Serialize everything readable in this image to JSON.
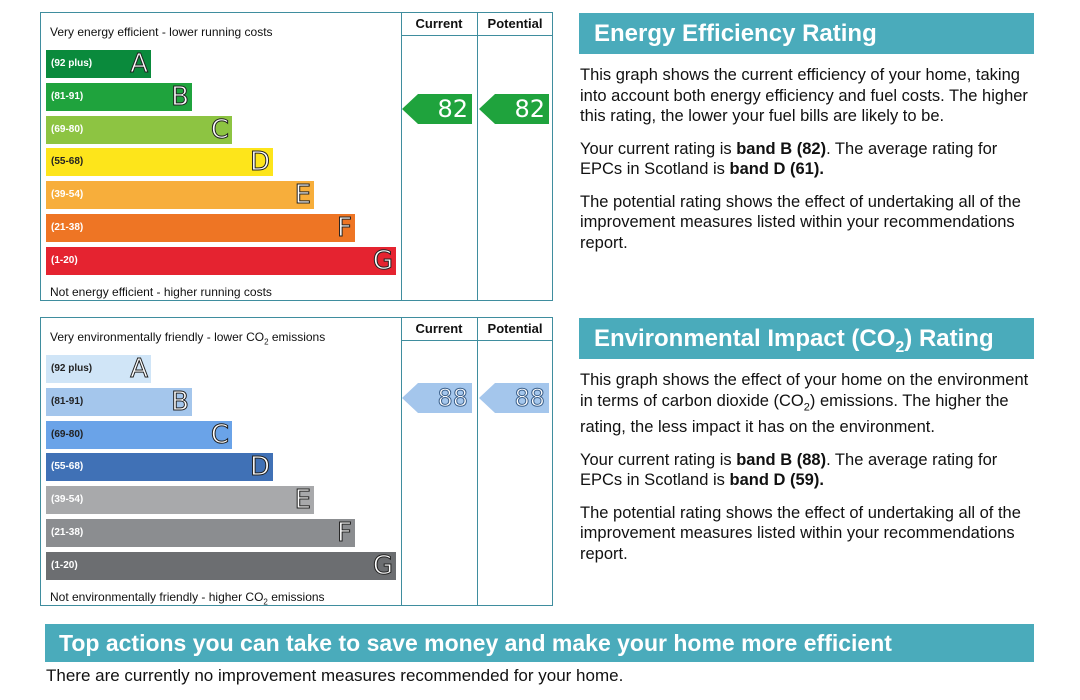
{
  "charts": {
    "energy": {
      "col_current": "Current",
      "col_potential": "Potential",
      "top_caption": "Very energy efficient - lower running costs",
      "bottom_caption": "Not energy efficient - higher running costs",
      "bands": [
        {
          "range": "(92 plus)",
          "letter": "A",
          "color": "#0a8a3c"
        },
        {
          "range": "(81-91)",
          "letter": "B",
          "color": "#1fa33d"
        },
        {
          "range": "(69-80)",
          "letter": "C",
          "color": "#8dc442"
        },
        {
          "range": "(55-68)",
          "letter": "D",
          "color": "#fde51b"
        },
        {
          "range": "(39-54)",
          "letter": "E",
          "color": "#f7ae3b"
        },
        {
          "range": "(21-38)",
          "letter": "F",
          "color": "#ee7524"
        },
        {
          "range": "(1-20)",
          "letter": "G",
          "color": "#e52330"
        }
      ],
      "current": "82",
      "potential": "82"
    },
    "environmental": {
      "col_current": "Current",
      "col_potential": "Potential",
      "top_caption_pre": "Very environmentally friendly - lower CO",
      "top_caption_sub": "2",
      "top_caption_post": " emissions",
      "bottom_caption_pre": "Not environmentally friendly - higher CO",
      "bottom_caption_sub": "2",
      "bottom_caption_post": " emissions",
      "bands": [
        {
          "range": "(92 plus)",
          "letter": "A",
          "color": "#d0e5f7"
        },
        {
          "range": "(81-91)",
          "letter": "B",
          "color": "#a4c6ec"
        },
        {
          "range": "(69-80)",
          "letter": "C",
          "color": "#6aa3e8"
        },
        {
          "range": "(55-68)",
          "letter": "D",
          "color": "#4071b6"
        },
        {
          "range": "(39-54)",
          "letter": "E",
          "color": "#a8a9ab"
        },
        {
          "range": "(21-38)",
          "letter": "F",
          "color": "#8b8d90"
        },
        {
          "range": "(1-20)",
          "letter": "G",
          "color": "#6c6e71"
        }
      ],
      "current": "88",
      "potential": "88"
    }
  },
  "energy_panel": {
    "title": "Energy Efficiency Rating",
    "p1": "This graph shows the current efficiency of your home, taking into account both energy efficiency and fuel costs. The higher this rating, the lower your fuel bills are likely to be.",
    "p2_a": "Your current rating is ",
    "p2_b": "band B (82)",
    "p2_c": ". The average rating for EPCs in Scotland is ",
    "p2_d": "band D (61).",
    "p3": "The potential rating shows the effect of undertaking all of the improvement measures listed within your recommendations report."
  },
  "env_panel": {
    "title_pre": "Environmental Impact (CO",
    "title_sub": "2",
    "title_post": ") Rating",
    "p1_a": "This graph shows the effect of your home on the environment in terms of carbon dioxide (CO",
    "p1_sub": "2",
    "p1_b": ") emissions. The higher the rating, the less impact it has on the environment.",
    "p2_a": "Your current rating is ",
    "p2_b": "band B (88)",
    "p2_c": ". The average rating for EPCs in Scotland is ",
    "p2_d": "band D (59).",
    "p3": "The potential rating shows the effect of undertaking all of the improvement measures listed within your recommendations report."
  },
  "banner": "Top actions you can take to save money and make your home more efficient",
  "footer": "There are currently no improvement measures recommended for your home."
}
